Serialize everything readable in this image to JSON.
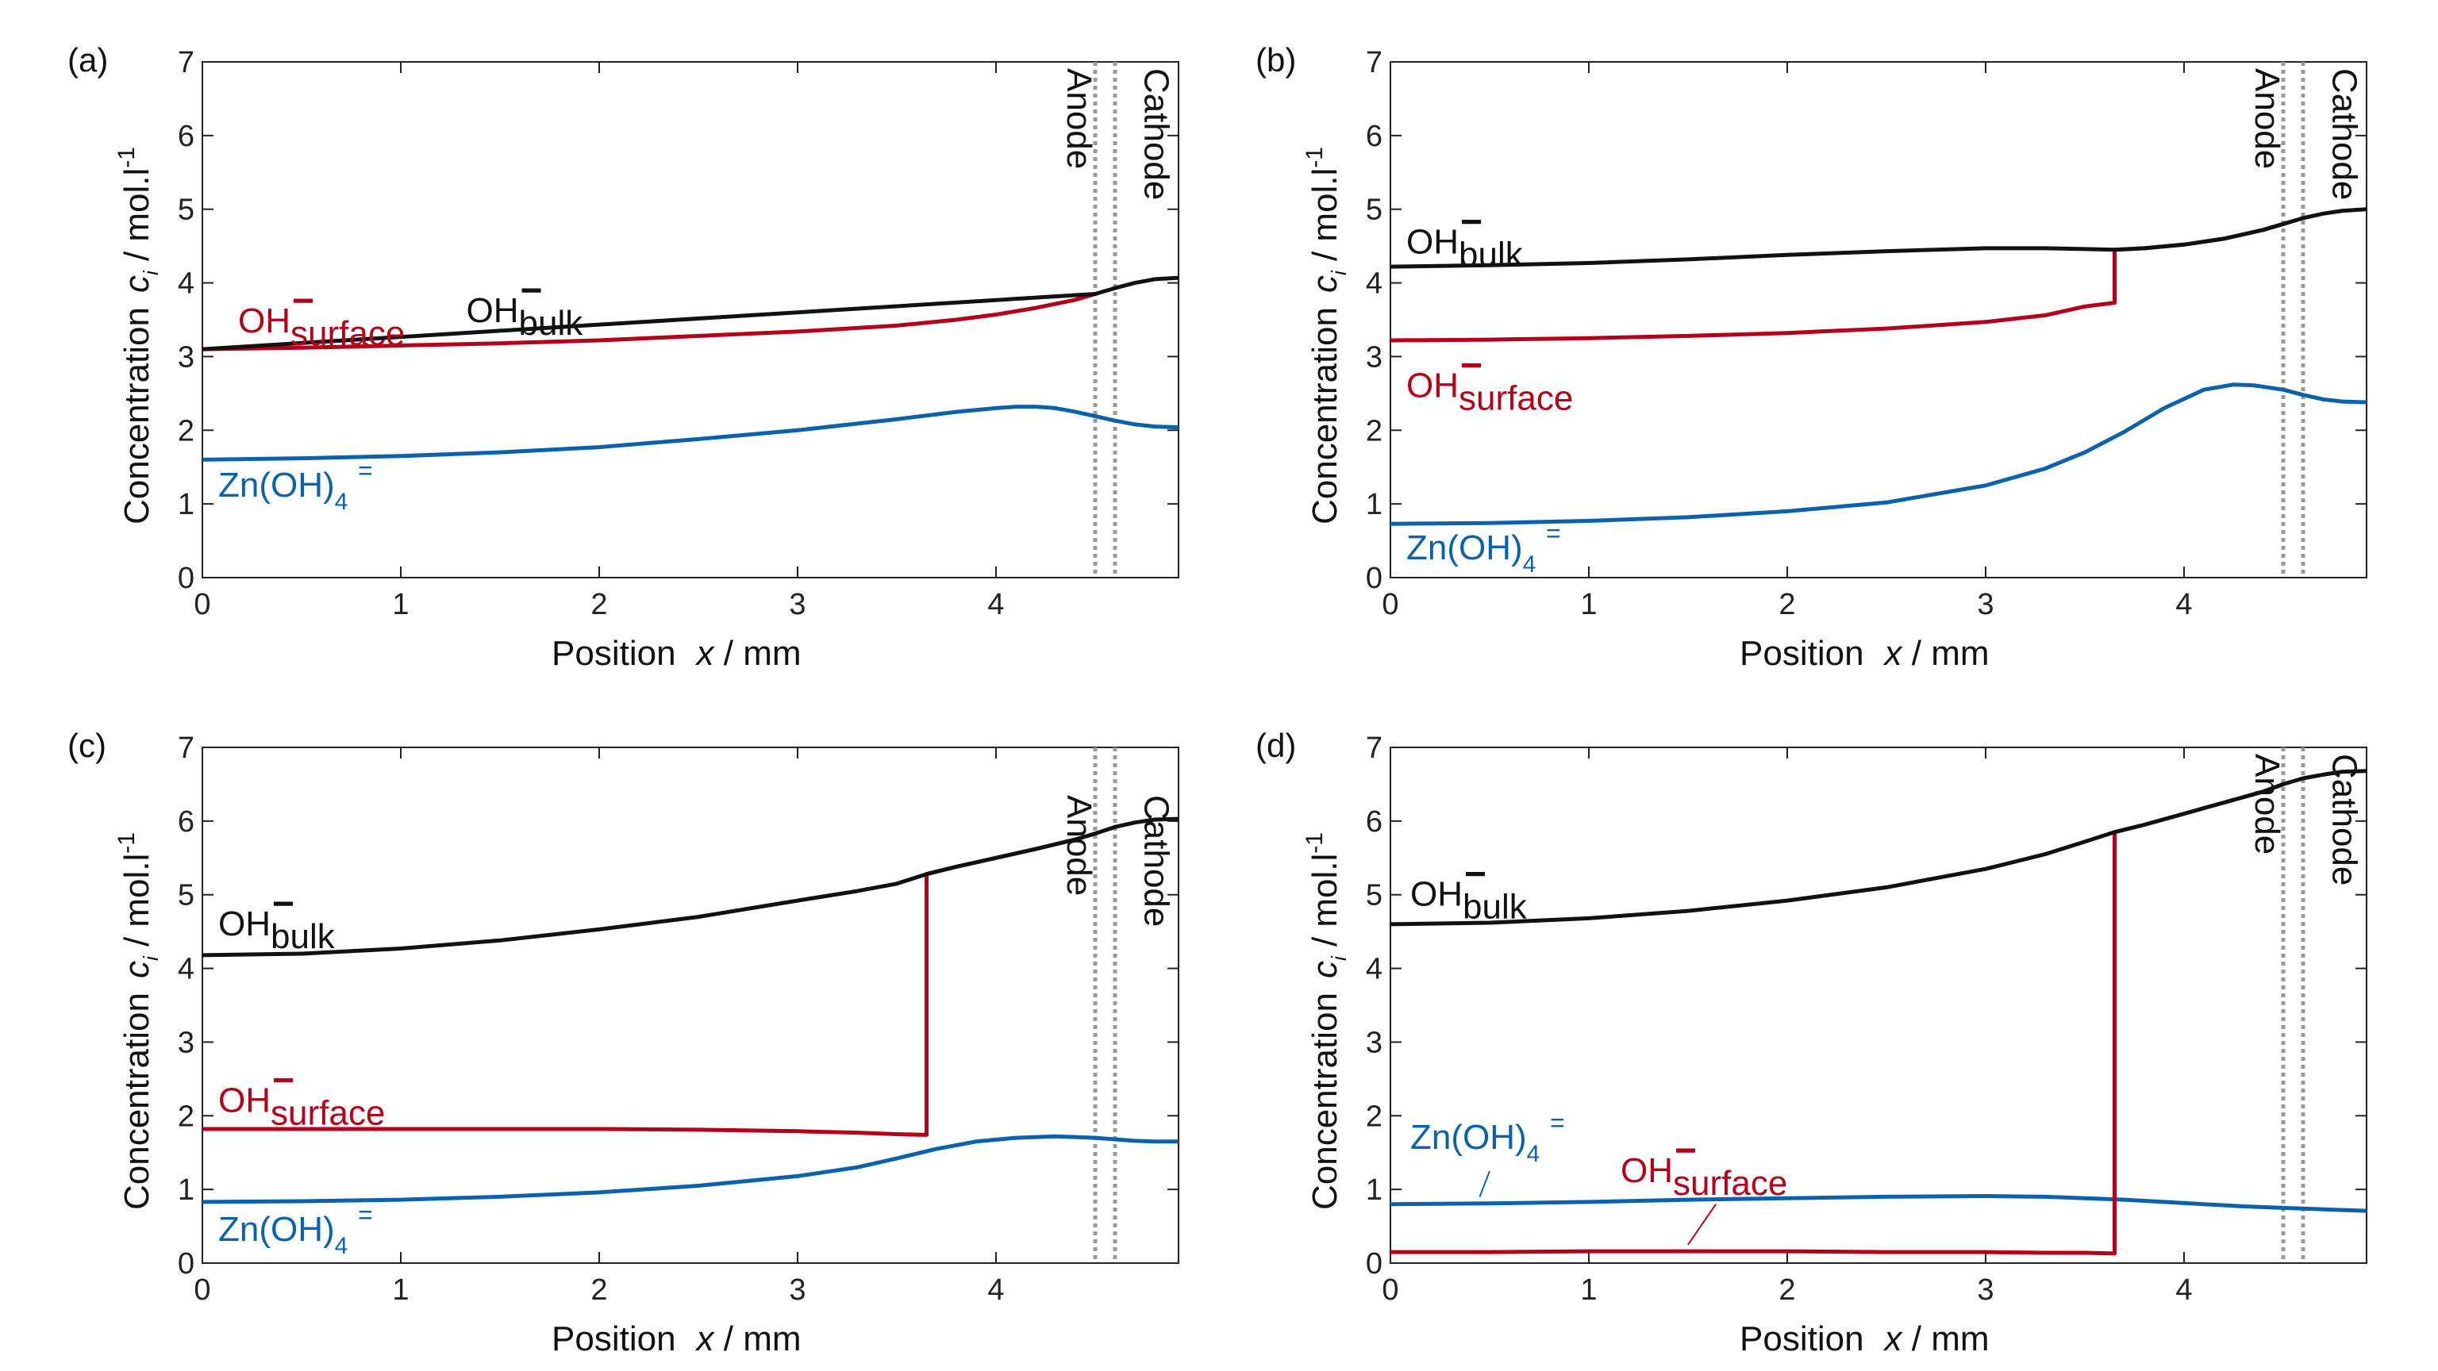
{
  "colors": {
    "bulk": "#111111",
    "surface": "#b3001b",
    "zincate": "#0a62ad",
    "electrode": "#9a9a9a",
    "axis": "#222222"
  },
  "labels": {
    "ylabel_main": "Concentration",
    "ylabel_var": "c",
    "ylabel_sub": "i",
    "ylabel_unit": " /  mol.l",
    "ylabel_exp": "-1",
    "xlabel_main": "Position",
    "xlabel_var": "x",
    "xlabel_unit": " / mm",
    "anode": "Anode",
    "cathode": "Cathode",
    "oh": "OH",
    "minus": "−",
    "bulk": "bulk",
    "surface": "surface",
    "zn": "Zn(OH)",
    "zn_sub": "4",
    "zn_sup": "="
  },
  "chart_data": [
    {
      "id": "a",
      "panel_label": "(a)",
      "type": "line",
      "xlim": [
        0,
        4.92
      ],
      "ylim": [
        0,
        7
      ],
      "xticks": [
        0,
        1,
        2,
        3,
        4
      ],
      "yticks": [
        0,
        1,
        2,
        3,
        4,
        5,
        6,
        7
      ],
      "xlabel": "Position x / mm",
      "ylabel": "Concentration c_i / mol.l-1",
      "electrodes": {
        "anode_x": 4.5,
        "cathode_x": 4.6,
        "label_position": "top"
      },
      "series": [
        {
          "name": "OH- bulk",
          "color": "bulk",
          "x": [
            0,
            4.5,
            4.6,
            4.7,
            4.8,
            4.92
          ],
          "y": [
            3.1,
            3.85,
            3.93,
            4.0,
            4.05,
            4.07
          ]
        },
        {
          "name": "OH- surface",
          "color": "surface",
          "x": [
            0,
            0.5,
            1.0,
            1.5,
            2.0,
            2.5,
            3.0,
            3.5,
            3.8,
            4.0,
            4.2,
            4.4,
            4.5
          ],
          "y": [
            3.1,
            3.12,
            3.15,
            3.18,
            3.22,
            3.28,
            3.34,
            3.42,
            3.5,
            3.57,
            3.66,
            3.77,
            3.85
          ]
        },
        {
          "name": "Zn(OH)4 2-",
          "color": "zincate",
          "x": [
            0,
            0.5,
            1.0,
            1.5,
            2.0,
            2.5,
            3.0,
            3.5,
            3.8,
            4.0,
            4.1,
            4.2,
            4.3,
            4.4,
            4.5,
            4.6,
            4.7,
            4.8,
            4.92
          ],
          "y": [
            1.6,
            1.62,
            1.65,
            1.7,
            1.77,
            1.88,
            2.0,
            2.15,
            2.25,
            2.3,
            2.32,
            2.32,
            2.3,
            2.25,
            2.19,
            2.13,
            2.08,
            2.05,
            2.04
          ]
        }
      ],
      "annotations": [
        {
          "series": "surface",
          "text": "OH- surface",
          "x": 0.18,
          "y": 3.33
        },
        {
          "series": "bulk",
          "text": "OH- bulk",
          "x": 1.33,
          "y": 3.47
        },
        {
          "series": "zincate",
          "text": "Zn(OH)4=",
          "x": 0.08,
          "y": 1.1
        }
      ]
    },
    {
      "id": "b",
      "panel_label": "(b)",
      "type": "line",
      "xlim": [
        0,
        4.92
      ],
      "ylim": [
        0,
        7
      ],
      "xticks": [
        0,
        1,
        2,
        3,
        4
      ],
      "yticks": [
        0,
        1,
        2,
        3,
        4,
        5,
        6,
        7
      ],
      "xlabel": "Position x / mm",
      "ylabel": "Concentration c_i / mol.l-1",
      "electrodes": {
        "anode_x": 4.5,
        "cathode_x": 4.6,
        "label_position": "top"
      },
      "series": [
        {
          "name": "OH- bulk",
          "color": "bulk",
          "x": [
            0,
            0.5,
            1.0,
            1.5,
            2.0,
            2.5,
            3.0,
            3.3,
            3.5,
            3.65,
            3.8,
            4.0,
            4.2,
            4.4,
            4.5,
            4.6,
            4.7,
            4.8,
            4.92
          ],
          "y": [
            4.22,
            4.24,
            4.27,
            4.32,
            4.38,
            4.43,
            4.47,
            4.47,
            4.46,
            4.45,
            4.47,
            4.52,
            4.6,
            4.72,
            4.8,
            4.88,
            4.94,
            4.98,
            5.0
          ]
        },
        {
          "name": "OH- surface",
          "color": "surface",
          "x": [
            0,
            0.5,
            1.0,
            1.5,
            2.0,
            2.5,
            3.0,
            3.3,
            3.5,
            3.65,
            3.65,
            3.8,
            4.0,
            4.2,
            4.4,
            4.5
          ],
          "y": [
            3.22,
            3.23,
            3.25,
            3.28,
            3.32,
            3.38,
            3.47,
            3.56,
            3.68,
            3.73,
            4.45,
            4.47,
            4.52,
            4.6,
            4.72,
            4.8
          ]
        },
        {
          "name": "Zn(OH)4 2-",
          "color": "zincate",
          "x": [
            0,
            0.5,
            1.0,
            1.5,
            2.0,
            2.5,
            3.0,
            3.3,
            3.5,
            3.7,
            3.9,
            4.1,
            4.25,
            4.35,
            4.5,
            4.6,
            4.7,
            4.8,
            4.92
          ],
          "y": [
            0.73,
            0.74,
            0.77,
            0.82,
            0.9,
            1.02,
            1.25,
            1.48,
            1.7,
            1.98,
            2.3,
            2.55,
            2.62,
            2.61,
            2.55,
            2.48,
            2.42,
            2.39,
            2.38
          ]
        }
      ],
      "annotations": [
        {
          "series": "bulk",
          "text": "OH- bulk",
          "x": 0.08,
          "y": 4.4
        },
        {
          "series": "surface",
          "text": "OH- surface",
          "x": 0.08,
          "y": 2.45
        },
        {
          "series": "zincate",
          "text": "Zn(OH)4=",
          "x": 0.08,
          "y": 0.25
        }
      ]
    },
    {
      "id": "c",
      "panel_label": "(c)",
      "type": "line",
      "xlim": [
        0,
        4.92
      ],
      "ylim": [
        0,
        7
      ],
      "xticks": [
        0,
        1,
        2,
        3,
        4
      ],
      "yticks": [
        0,
        1,
        2,
        3,
        4,
        5,
        6,
        7
      ],
      "xlabel": "Position x / mm",
      "ylabel": "Concentration c_i / mol.l-1",
      "electrodes": {
        "anode_x": 4.5,
        "cathode_x": 4.6,
        "label_position": "middle"
      },
      "series": [
        {
          "name": "OH- bulk",
          "color": "bulk",
          "x": [
            0,
            0.5,
            1.0,
            1.5,
            2.0,
            2.5,
            3.0,
            3.3,
            3.5,
            3.65,
            3.8,
            4.0,
            4.2,
            4.4,
            4.5,
            4.6,
            4.7,
            4.8,
            4.92
          ],
          "y": [
            4.18,
            4.2,
            4.27,
            4.38,
            4.53,
            4.7,
            4.92,
            5.05,
            5.15,
            5.28,
            5.38,
            5.5,
            5.62,
            5.75,
            5.83,
            5.92,
            5.98,
            6.02,
            6.03
          ]
        },
        {
          "name": "OH- surface",
          "color": "surface",
          "x": [
            0,
            0.5,
            1.0,
            1.5,
            2.0,
            2.5,
            3.0,
            3.3,
            3.5,
            3.65,
            3.65,
            3.8,
            4.0,
            4.2,
            4.4,
            4.5
          ],
          "y": [
            1.82,
            1.82,
            1.82,
            1.82,
            1.82,
            1.81,
            1.79,
            1.77,
            1.75,
            1.74,
            5.28,
            5.38,
            5.5,
            5.62,
            5.75,
            5.83
          ]
        },
        {
          "name": "Zn(OH)4 2-",
          "color": "zincate",
          "x": [
            0,
            0.5,
            1.0,
            1.5,
            2.0,
            2.5,
            3.0,
            3.3,
            3.5,
            3.7,
            3.9,
            4.1,
            4.3,
            4.5,
            4.6,
            4.7,
            4.8,
            4.92
          ],
          "y": [
            0.83,
            0.84,
            0.86,
            0.9,
            0.96,
            1.05,
            1.18,
            1.3,
            1.42,
            1.55,
            1.65,
            1.7,
            1.72,
            1.7,
            1.68,
            1.66,
            1.65,
            1.65
          ]
        }
      ],
      "annotations": [
        {
          "series": "bulk",
          "text": "OH- bulk",
          "x": 0.08,
          "y": 4.45
        },
        {
          "series": "surface",
          "text": "OH- surface",
          "x": 0.08,
          "y": 2.05
        },
        {
          "series": "zincate",
          "text": "Zn(OH)4=",
          "x": 0.08,
          "y": 0.3
        }
      ]
    },
    {
      "id": "d",
      "panel_label": "(d)",
      "type": "line",
      "xlim": [
        0,
        4.92
      ],
      "ylim": [
        0,
        7
      ],
      "xticks": [
        0,
        1,
        2,
        3,
        4
      ],
      "yticks": [
        0,
        1,
        2,
        3,
        4,
        5,
        6,
        7
      ],
      "xlabel": "Position x / mm",
      "ylabel": "Concentration c_i / mol.l-1",
      "electrodes": {
        "anode_x": 4.5,
        "cathode_x": 4.6,
        "label_position": "top"
      },
      "series": [
        {
          "name": "OH- bulk",
          "color": "bulk",
          "x": [
            0,
            0.5,
            1.0,
            1.5,
            2.0,
            2.5,
            3.0,
            3.3,
            3.5,
            3.65,
            3.8,
            4.0,
            4.2,
            4.4,
            4.5,
            4.6,
            4.7,
            4.8,
            4.92
          ],
          "y": [
            4.6,
            4.62,
            4.68,
            4.78,
            4.92,
            5.1,
            5.35,
            5.55,
            5.72,
            5.85,
            5.95,
            6.1,
            6.25,
            6.4,
            6.5,
            6.58,
            6.63,
            6.67,
            6.68
          ]
        },
        {
          "name": "OH- surface",
          "color": "surface",
          "x": [
            0,
            0.5,
            1.0,
            1.5,
            2.0,
            2.5,
            3.0,
            3.3,
            3.5,
            3.65,
            3.65,
            3.8,
            4.0,
            4.2,
            4.4,
            4.5
          ],
          "y": [
            0.15,
            0.15,
            0.16,
            0.16,
            0.16,
            0.15,
            0.15,
            0.14,
            0.14,
            0.13,
            5.85,
            5.95,
            6.1,
            6.25,
            6.4,
            6.5
          ]
        },
        {
          "name": "Zn(OH)4 2-",
          "color": "zincate",
          "x": [
            0,
            0.5,
            1.0,
            1.5,
            2.0,
            2.5,
            3.0,
            3.3,
            3.5,
            3.7,
            3.9,
            4.1,
            4.3,
            4.5,
            4.6,
            4.7,
            4.8,
            4.92
          ],
          "y": [
            0.8,
            0.81,
            0.83,
            0.86,
            0.88,
            0.9,
            0.91,
            0.9,
            0.88,
            0.86,
            0.83,
            0.8,
            0.77,
            0.75,
            0.74,
            0.73,
            0.72,
            0.71
          ]
        }
      ],
      "annotations": [
        {
          "series": "bulk",
          "text": "OH- bulk",
          "x": 0.1,
          "y": 4.85
        },
        {
          "series": "zincate",
          "text": "Zn(OH)4=",
          "x": 0.1,
          "y": 1.55,
          "pointer_to": [
            0.45,
            0.9
          ]
        },
        {
          "series": "surface",
          "text": "OH- surface",
          "x": 1.16,
          "y": 1.1,
          "pointer_to": [
            1.5,
            0.25
          ]
        }
      ]
    }
  ]
}
